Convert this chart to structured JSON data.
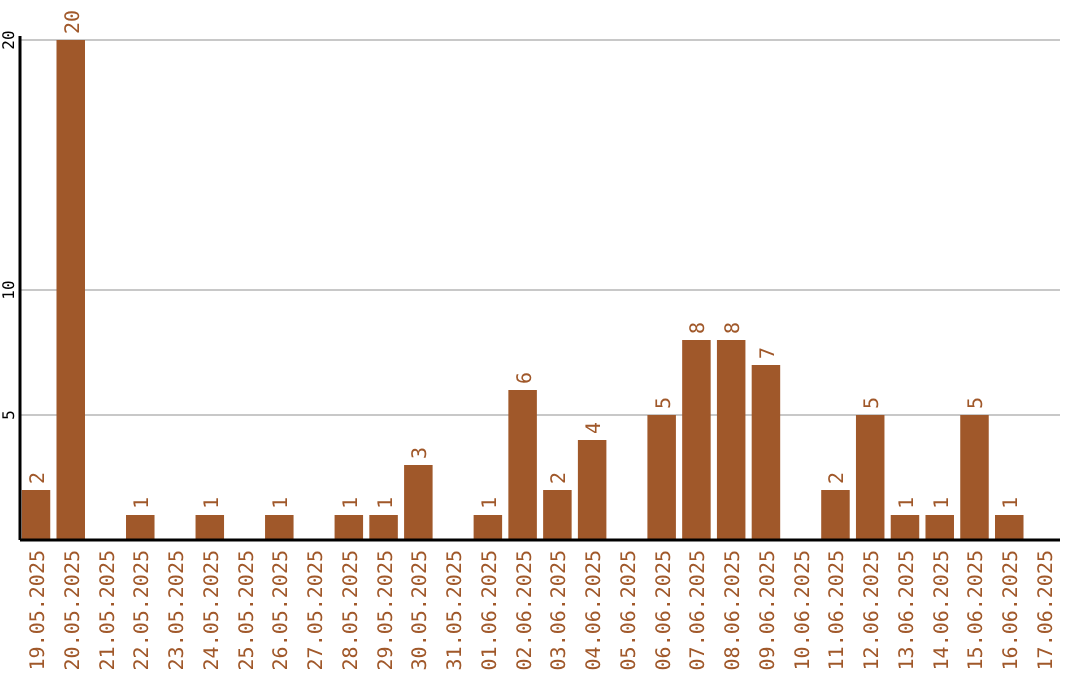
{
  "chart_data": {
    "type": "bar",
    "categories": [
      "19.05.2025",
      "20.05.2025",
      "21.05.2025",
      "22.05.2025",
      "23.05.2025",
      "24.05.2025",
      "25.05.2025",
      "26.05.2025",
      "27.05.2025",
      "28.05.2025",
      "29.05.2025",
      "30.05.2025",
      "31.05.2025",
      "01.06.2025",
      "02.06.2025",
      "03.06.2025",
      "04.06.2025",
      "05.06.2025",
      "06.06.2025",
      "07.06.2025",
      "08.06.2025",
      "09.06.2025",
      "10.06.2025",
      "11.06.2025",
      "12.06.2025",
      "13.06.2025",
      "14.06.2025",
      "15.06.2025",
      "16.06.2025",
      "17.06.2025"
    ],
    "values": [
      2,
      20,
      0,
      1,
      0,
      1,
      0,
      1,
      0,
      1,
      1,
      3,
      0,
      1,
      6,
      2,
      4,
      0,
      5,
      8,
      8,
      7,
      0,
      2,
      5,
      1,
      1,
      5,
      1,
      0
    ],
    "value_labels": [
      "2",
      "20",
      null,
      "1",
      null,
      "1",
      null,
      "1",
      null,
      "1",
      "1",
      "3",
      null,
      "1",
      "6",
      "2",
      "4",
      null,
      "5",
      "8",
      "8",
      "7",
      null,
      "2",
      "5",
      "1",
      "1",
      "5",
      "1",
      null
    ],
    "color": "#a0582a",
    "ylim": [
      0,
      20
    ],
    "yticks": [
      5,
      10,
      20
    ],
    "grid": "y"
  }
}
